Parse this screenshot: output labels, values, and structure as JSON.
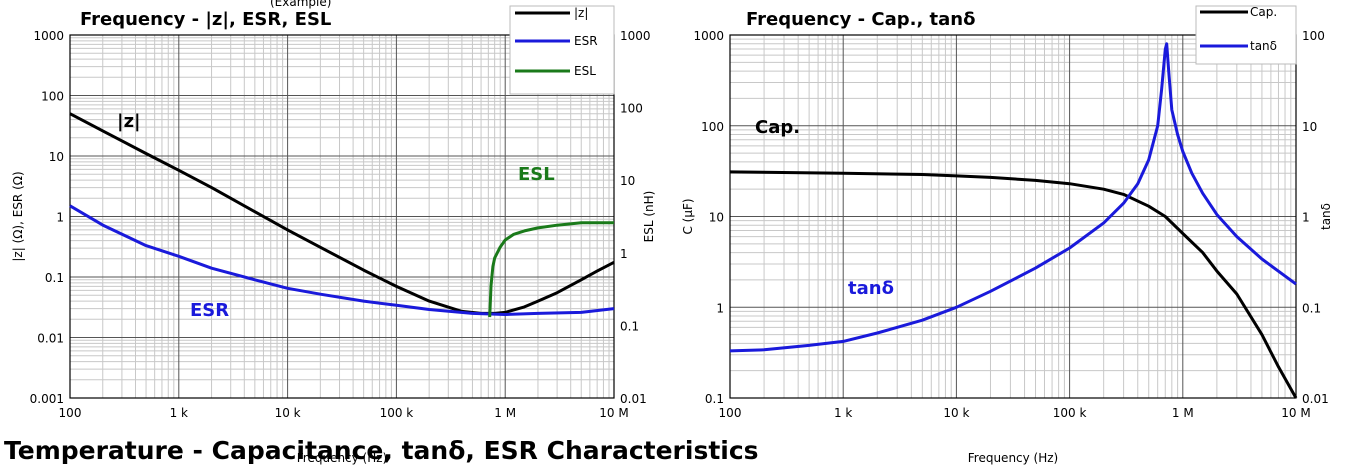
{
  "footer_text": "Temperature - Capacitance, tanδ, ESR Characteristics",
  "chart_data": [
    {
      "type": "line",
      "title": "Frequency - |z|, ESR, ESL",
      "top_clip_text": "(Example)",
      "xlabel": "Frequency (Hz)",
      "ylabel": "|z| (Ω), ESR (Ω)",
      "y2label": "ESL (nH)",
      "xscale": "log",
      "yscale": "log",
      "y2scale": "log",
      "xlim": [
        100,
        10000000
      ],
      "ylim": [
        0.001,
        1000
      ],
      "y2lim": [
        0.01,
        1000
      ],
      "x_ticks": [
        "100",
        "1 k",
        "10 k",
        "100 k",
        "1 M",
        "10 M"
      ],
      "y_ticks": [
        "0.001",
        "0.01",
        "0.1",
        "1",
        "10",
        "100",
        "1000"
      ],
      "y2_ticks": [
        "0.01",
        "0.1",
        "1",
        "10",
        "100",
        "1000"
      ],
      "grid": true,
      "legend_position": "top-right",
      "series": [
        {
          "name": "|z|",
          "color": "#000000",
          "axis": "left",
          "label": "|z|",
          "x": [
            100,
            200,
            500,
            1000,
            2000,
            5000,
            10000,
            20000,
            50000,
            100000,
            200000,
            400000,
            600000,
            800000,
            1000000,
            1500000,
            2000000,
            3000000,
            5000000,
            7000000,
            10000000
          ],
          "y": [
            50,
            26,
            11,
            5.8,
            3,
            1.2,
            0.6,
            0.31,
            0.13,
            0.07,
            0.04,
            0.027,
            0.025,
            0.025,
            0.026,
            0.032,
            0.04,
            0.055,
            0.09,
            0.125,
            0.175
          ]
        },
        {
          "name": "ESR",
          "color": "#1a1adb",
          "axis": "left",
          "label": "ESR",
          "x": [
            100,
            200,
            500,
            1000,
            2000,
            5000,
            10000,
            20000,
            50000,
            100000,
            200000,
            500000,
            1000000,
            2000000,
            5000000,
            10000000
          ],
          "y": [
            1.5,
            0.72,
            0.33,
            0.22,
            0.14,
            0.09,
            0.065,
            0.052,
            0.04,
            0.034,
            0.029,
            0.025,
            0.024,
            0.025,
            0.026,
            0.03
          ]
        },
        {
          "name": "ESL",
          "color": "#1a7a1a",
          "axis": "right",
          "label": "ESL",
          "x": [
            720000,
            740000,
            770000,
            800000,
            900000,
            1000000,
            1200000,
            1500000,
            2000000,
            3000000,
            5000000,
            10000000
          ],
          "y": [
            0.13,
            0.35,
            0.65,
            0.85,
            1.2,
            1.5,
            1.8,
            2.0,
            2.2,
            2.4,
            2.6,
            2.6
          ]
        }
      ]
    },
    {
      "type": "line",
      "title": "Frequency - Cap., tanδ",
      "xlabel": "Frequency (Hz)",
      "ylabel": "C (μF)",
      "y2label": "tanδ",
      "xscale": "log",
      "yscale": "log",
      "y2scale": "log",
      "xlim": [
        100,
        10000000
      ],
      "ylim": [
        0.1,
        1000
      ],
      "y2lim": [
        0.01,
        100
      ],
      "x_ticks": [
        "100",
        "1 k",
        "10 k",
        "100 k",
        "1 M",
        "10 M"
      ],
      "y_ticks": [
        "0.1",
        "1",
        "10",
        "100",
        "1000"
      ],
      "y2_ticks": [
        "0.01",
        "0.1",
        "1",
        "10",
        "100"
      ],
      "grid": true,
      "legend_position": "top-right",
      "series": [
        {
          "name": "Cap.",
          "color": "#000000",
          "axis": "left",
          "label": "Cap.",
          "x": [
            100,
            1000,
            5000,
            10000,
            20000,
            50000,
            100000,
            200000,
            300000,
            500000,
            700000,
            1000000,
            1500000,
            2000000,
            3000000,
            5000000,
            7000000,
            10000000
          ],
          "y": [
            31,
            30,
            29,
            28,
            27,
            25,
            23,
            20,
            17.5,
            13,
            10,
            6.5,
            4,
            2.5,
            1.4,
            0.5,
            0.22,
            0.1
          ]
        },
        {
          "name": "tanδ",
          "color": "#1a1adb",
          "axis": "right",
          "label": "tanδ",
          "x": [
            100,
            200,
            500,
            1000,
            2000,
            5000,
            10000,
            20000,
            50000,
            100000,
            200000,
            300000,
            400000,
            500000,
            600000,
            650000,
            700000,
            720000,
            750000,
            800000,
            900000,
            1000000,
            1200000,
            1500000,
            2000000,
            3000000,
            5000000,
            10000000
          ],
          "y": [
            0.033,
            0.034,
            0.038,
            0.042,
            0.052,
            0.072,
            0.1,
            0.15,
            0.27,
            0.45,
            0.85,
            1.4,
            2.3,
            4.2,
            10,
            25,
            70,
            80,
            40,
            15,
            8,
            5.2,
            3,
            1.8,
            1.05,
            0.6,
            0.34,
            0.18
          ]
        }
      ]
    }
  ]
}
